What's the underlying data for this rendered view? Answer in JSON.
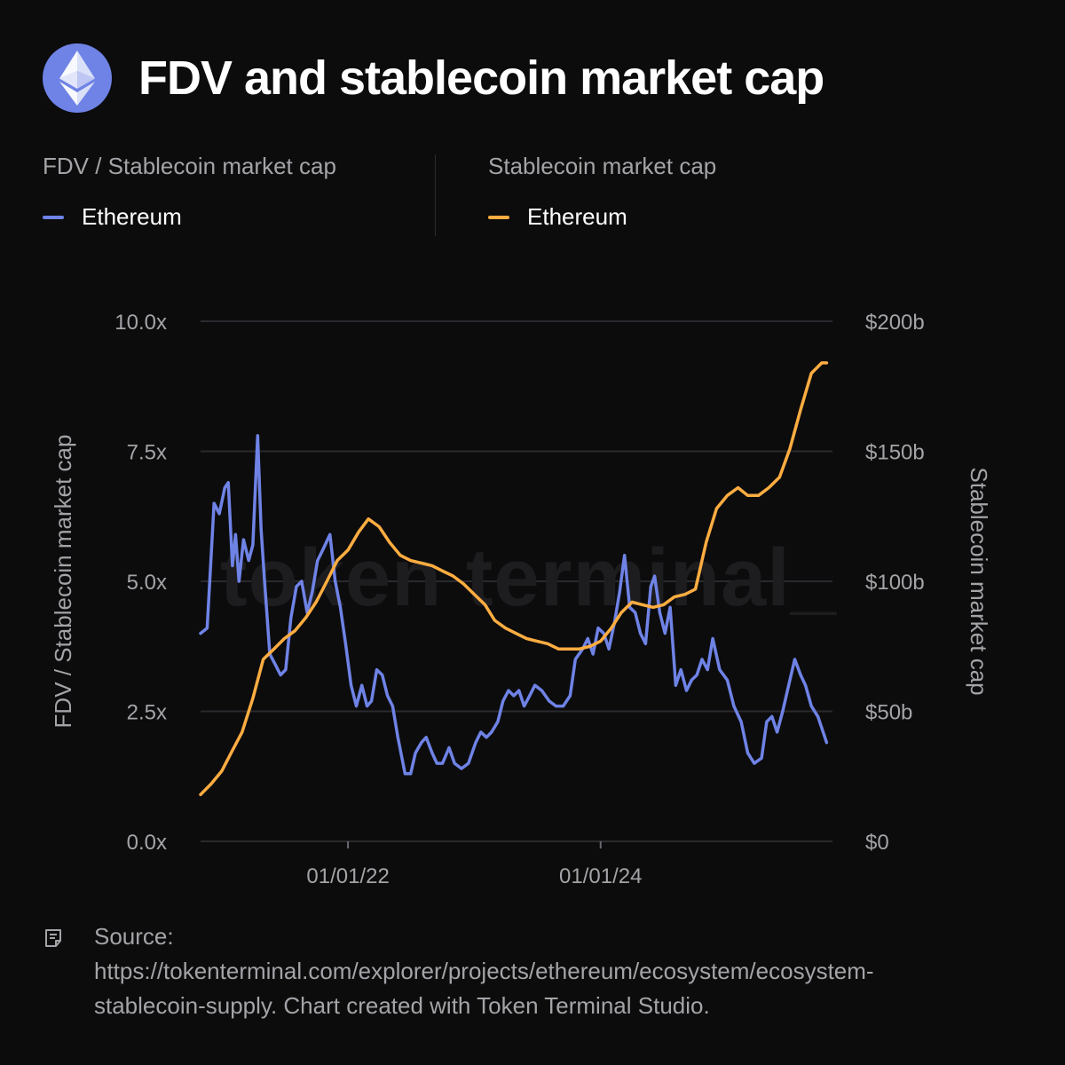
{
  "header": {
    "title": "FDV and stablecoin market cap",
    "logo_icon": "ethereum-diamond-icon",
    "logo_color": "#6f83e6"
  },
  "legend": {
    "left": {
      "title": "FDV / Stablecoin market cap",
      "series": "Ethereum",
      "color": "#6f83e6"
    },
    "right": {
      "title": "Stablecoin market cap",
      "series": "Ethereum",
      "color": "#ffad41"
    }
  },
  "watermark": "token terminal_",
  "source": {
    "icon": "document-icon",
    "text": "Source:\nhttps://tokenterminal.com/explorer/projects/ethereum/ecosystem/ecosystem-\nstablecoin-supply. Chart created with Token Terminal Studio."
  },
  "chart_data": {
    "type": "line",
    "title": "FDV and stablecoin market cap",
    "x_tick_labels": [
      "01/01/22",
      "01/01/24"
    ],
    "x_tick_dates": [
      "2022-01-01",
      "2024-01-01"
    ],
    "x_range": [
      "2020-11-01",
      "2025-11-01"
    ],
    "y_left": {
      "label": "FDV / Stablecoin market cap",
      "range": [
        0,
        10
      ],
      "ticks": [
        "0.0x",
        "2.5x",
        "5.0x",
        "7.5x",
        "10.0x"
      ]
    },
    "y_right": {
      "label": "Stablecoin market cap",
      "range": [
        0,
        200
      ],
      "ticks": [
        "$0",
        "$50b",
        "$100b",
        "$150b",
        "$200b"
      ]
    },
    "grid": true,
    "legend_position": "top",
    "series": [
      {
        "name": "Ethereum",
        "axis": "left",
        "color": "#6f83e6",
        "points": [
          [
            "2020-11-01",
            4.0
          ],
          [
            "2020-11-20",
            4.1
          ],
          [
            "2020-12-10",
            6.5
          ],
          [
            "2020-12-25",
            6.3
          ],
          [
            "2021-01-10",
            6.8
          ],
          [
            "2021-01-20",
            6.9
          ],
          [
            "2021-02-01",
            5.3
          ],
          [
            "2021-02-10",
            5.9
          ],
          [
            "2021-02-20",
            5.0
          ],
          [
            "2021-03-05",
            5.8
          ],
          [
            "2021-03-20",
            5.4
          ],
          [
            "2021-04-01",
            5.7
          ],
          [
            "2021-04-15",
            7.8
          ],
          [
            "2021-04-25",
            6.0
          ],
          [
            "2021-05-05",
            5.0
          ],
          [
            "2021-05-20",
            3.6
          ],
          [
            "2021-06-05",
            3.4
          ],
          [
            "2021-06-20",
            3.2
          ],
          [
            "2021-07-05",
            3.3
          ],
          [
            "2021-07-20",
            4.3
          ],
          [
            "2021-08-05",
            4.9
          ],
          [
            "2021-08-20",
            5.0
          ],
          [
            "2021-09-05",
            4.4
          ],
          [
            "2021-09-20",
            4.8
          ],
          [
            "2021-10-05",
            5.4
          ],
          [
            "2021-10-20",
            5.6
          ],
          [
            "2021-11-10",
            5.9
          ],
          [
            "2021-11-25",
            5.0
          ],
          [
            "2021-12-10",
            4.5
          ],
          [
            "2021-12-25",
            3.8
          ],
          [
            "2022-01-10",
            3.0
          ],
          [
            "2022-01-25",
            2.6
          ],
          [
            "2022-02-10",
            3.0
          ],
          [
            "2022-02-25",
            2.6
          ],
          [
            "2022-03-10",
            2.7
          ],
          [
            "2022-03-25",
            3.3
          ],
          [
            "2022-04-10",
            3.2
          ],
          [
            "2022-04-25",
            2.8
          ],
          [
            "2022-05-10",
            2.6
          ],
          [
            "2022-05-25",
            2.0
          ],
          [
            "2022-06-15",
            1.3
          ],
          [
            "2022-07-01",
            1.3
          ],
          [
            "2022-07-15",
            1.7
          ],
          [
            "2022-08-01",
            1.9
          ],
          [
            "2022-08-15",
            2.0
          ],
          [
            "2022-09-01",
            1.7
          ],
          [
            "2022-09-15",
            1.5
          ],
          [
            "2022-10-01",
            1.5
          ],
          [
            "2022-10-20",
            1.8
          ],
          [
            "2022-11-05",
            1.5
          ],
          [
            "2022-11-25",
            1.4
          ],
          [
            "2022-12-15",
            1.5
          ],
          [
            "2023-01-05",
            1.9
          ],
          [
            "2023-01-20",
            2.1
          ],
          [
            "2023-02-05",
            2.0
          ],
          [
            "2023-02-20",
            2.1
          ],
          [
            "2023-03-10",
            2.3
          ],
          [
            "2023-03-25",
            2.7
          ],
          [
            "2023-04-10",
            2.9
          ],
          [
            "2023-04-25",
            2.8
          ],
          [
            "2023-05-10",
            2.9
          ],
          [
            "2023-05-25",
            2.6
          ],
          [
            "2023-06-10",
            2.8
          ],
          [
            "2023-06-25",
            3.0
          ],
          [
            "2023-07-15",
            2.9
          ],
          [
            "2023-08-05",
            2.7
          ],
          [
            "2023-08-25",
            2.6
          ],
          [
            "2023-09-15",
            2.6
          ],
          [
            "2023-10-05",
            2.8
          ],
          [
            "2023-10-20",
            3.5
          ],
          [
            "2023-11-10",
            3.7
          ],
          [
            "2023-11-25",
            3.9
          ],
          [
            "2023-12-10",
            3.6
          ],
          [
            "2023-12-25",
            4.1
          ],
          [
            "2024-01-10",
            4.0
          ],
          [
            "2024-01-25",
            3.7
          ],
          [
            "2024-02-10",
            4.2
          ],
          [
            "2024-02-25",
            4.8
          ],
          [
            "2024-03-10",
            5.5
          ],
          [
            "2024-03-25",
            4.5
          ],
          [
            "2024-04-10",
            4.4
          ],
          [
            "2024-04-25",
            4.0
          ],
          [
            "2024-05-10",
            3.8
          ],
          [
            "2024-05-25",
            4.9
          ],
          [
            "2024-06-05",
            5.1
          ],
          [
            "2024-06-20",
            4.4
          ],
          [
            "2024-07-05",
            4.0
          ],
          [
            "2024-07-20",
            4.5
          ],
          [
            "2024-08-05",
            3.0
          ],
          [
            "2024-08-20",
            3.3
          ],
          [
            "2024-09-05",
            2.9
          ],
          [
            "2024-09-20",
            3.1
          ],
          [
            "2024-10-05",
            3.2
          ],
          [
            "2024-10-20",
            3.5
          ],
          [
            "2024-11-05",
            3.3
          ],
          [
            "2024-11-20",
            3.9
          ],
          [
            "2024-12-10",
            3.3
          ],
          [
            "2025-01-01",
            3.1
          ],
          [
            "2025-01-20",
            2.6
          ],
          [
            "2025-02-10",
            2.3
          ],
          [
            "2025-03-01",
            1.7
          ],
          [
            "2025-03-20",
            1.5
          ],
          [
            "2025-04-10",
            1.6
          ],
          [
            "2025-04-25",
            2.3
          ],
          [
            "2025-05-10",
            2.4
          ],
          [
            "2025-05-25",
            2.1
          ],
          [
            "2025-06-10",
            2.5
          ],
          [
            "2025-07-01",
            3.1
          ],
          [
            "2025-07-15",
            3.5
          ],
          [
            "2025-08-01",
            3.2
          ],
          [
            "2025-08-15",
            3.0
          ],
          [
            "2025-09-01",
            2.6
          ],
          [
            "2025-09-20",
            2.4
          ],
          [
            "2025-10-05",
            2.1
          ],
          [
            "2025-10-15",
            1.9
          ]
        ]
      },
      {
        "name": "Ethereum",
        "axis": "right",
        "color": "#ffad41",
        "points": [
          [
            "2020-11-01",
            18
          ],
          [
            "2020-12-01",
            22
          ],
          [
            "2021-01-01",
            27
          ],
          [
            "2021-02-01",
            35
          ],
          [
            "2021-03-01",
            42
          ],
          [
            "2021-04-01",
            55
          ],
          [
            "2021-05-01",
            70
          ],
          [
            "2021-06-01",
            74
          ],
          [
            "2021-07-01",
            78
          ],
          [
            "2021-08-01",
            81
          ],
          [
            "2021-09-01",
            86
          ],
          [
            "2021-10-01",
            92
          ],
          [
            "2021-11-01",
            100
          ],
          [
            "2021-12-01",
            108
          ],
          [
            "2022-01-01",
            112
          ],
          [
            "2022-02-01",
            119
          ],
          [
            "2022-03-01",
            124
          ],
          [
            "2022-04-01",
            121
          ],
          [
            "2022-05-01",
            115
          ],
          [
            "2022-06-01",
            110
          ],
          [
            "2022-07-01",
            108
          ],
          [
            "2022-08-01",
            107
          ],
          [
            "2022-09-01",
            106
          ],
          [
            "2022-10-01",
            104
          ],
          [
            "2022-11-01",
            102
          ],
          [
            "2022-12-01",
            99
          ],
          [
            "2023-01-01",
            95
          ],
          [
            "2023-02-01",
            91
          ],
          [
            "2023-03-01",
            85
          ],
          [
            "2023-04-01",
            82
          ],
          [
            "2023-05-01",
            80
          ],
          [
            "2023-06-01",
            78
          ],
          [
            "2023-07-01",
            77
          ],
          [
            "2023-08-01",
            76
          ],
          [
            "2023-09-01",
            74
          ],
          [
            "2023-10-01",
            74
          ],
          [
            "2023-11-01",
            74
          ],
          [
            "2023-12-01",
            75
          ],
          [
            "2024-01-01",
            77
          ],
          [
            "2024-02-01",
            82
          ],
          [
            "2024-03-01",
            88
          ],
          [
            "2024-04-01",
            92
          ],
          [
            "2024-05-01",
            91
          ],
          [
            "2024-06-01",
            90
          ],
          [
            "2024-07-01",
            91
          ],
          [
            "2024-08-01",
            94
          ],
          [
            "2024-09-01",
            95
          ],
          [
            "2024-10-01",
            97
          ],
          [
            "2024-11-01",
            115
          ],
          [
            "2024-12-01",
            128
          ],
          [
            "2025-01-01",
            133
          ],
          [
            "2025-02-01",
            136
          ],
          [
            "2025-03-01",
            133
          ],
          [
            "2025-04-01",
            133
          ],
          [
            "2025-05-01",
            136
          ],
          [
            "2025-06-01",
            140
          ],
          [
            "2025-07-01",
            151
          ],
          [
            "2025-08-01",
            166
          ],
          [
            "2025-09-01",
            180
          ],
          [
            "2025-10-01",
            184
          ],
          [
            "2025-10-15",
            184
          ]
        ]
      }
    ]
  }
}
